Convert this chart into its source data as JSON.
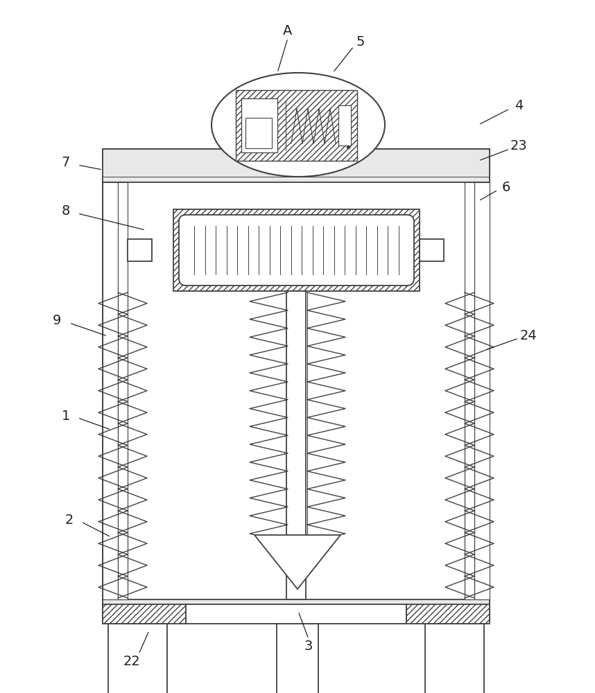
{
  "bg_color": "#ffffff",
  "line_color": "#404040",
  "fig_width": 8.58,
  "fig_height": 10.0,
  "lw": 1.3
}
